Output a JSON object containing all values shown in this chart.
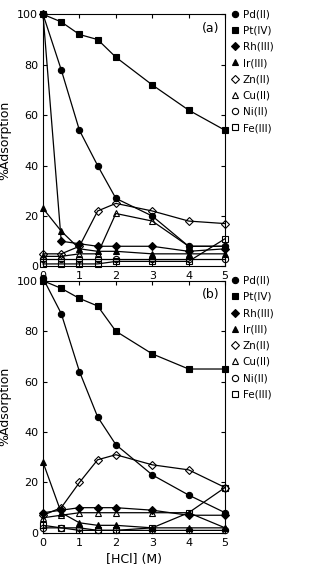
{
  "panel_a": {
    "label": "(a)",
    "series": {
      "Pd(II)": {
        "x": [
          0,
          0.5,
          1,
          1.5,
          2,
          3,
          4,
          5
        ],
        "y": [
          100,
          78,
          54,
          40,
          27,
          20,
          8,
          8
        ]
      },
      "Pt(IV)": {
        "x": [
          0,
          0.5,
          1,
          1.5,
          2,
          3,
          4,
          5
        ],
        "y": [
          100,
          97,
          92,
          90,
          83,
          72,
          62,
          54
        ]
      },
      "Rh(III)": {
        "x": [
          0,
          0.5,
          1,
          1.5,
          2,
          3,
          4,
          5
        ],
        "y": [
          100,
          10,
          9,
          8,
          8,
          8,
          6,
          7
        ]
      },
      "Ir(III)": {
        "x": [
          0,
          0.5,
          1,
          1.5,
          2,
          3,
          4,
          5
        ],
        "y": [
          23,
          14,
          7,
          6,
          6,
          5,
          5,
          5
        ]
      },
      "Zn(II)": {
        "x": [
          0,
          0.5,
          1,
          1.5,
          2,
          3,
          4,
          5
        ],
        "y": [
          5,
          5,
          8,
          22,
          25,
          22,
          18,
          17
        ]
      },
      "Cu(II)": {
        "x": [
          0,
          0.5,
          1,
          1.5,
          2,
          3,
          4,
          5
        ],
        "y": [
          4,
          4,
          5,
          5,
          21,
          18,
          8,
          8
        ]
      },
      "Ni(II)": {
        "x": [
          0,
          0.5,
          1,
          1.5,
          2,
          3,
          4,
          5
        ],
        "y": [
          3,
          3,
          3,
          3,
          3,
          3,
          3,
          3
        ]
      },
      "Fe(III)": {
        "x": [
          0,
          0.5,
          1,
          1.5,
          2,
          3,
          4,
          5
        ],
        "y": [
          1,
          1,
          1,
          1,
          2,
          2,
          2,
          11
        ]
      }
    }
  },
  "panel_b": {
    "label": "(b)",
    "series": {
      "Pd(II)": {
        "x": [
          0,
          0.5,
          1,
          1.5,
          2,
          3,
          4,
          5
        ],
        "y": [
          101,
          87,
          64,
          46,
          35,
          23,
          15,
          8
        ]
      },
      "Pt(IV)": {
        "x": [
          0,
          0.5,
          1,
          1.5,
          2,
          3,
          4,
          5
        ],
        "y": [
          100,
          97,
          93,
          90,
          80,
          71,
          65,
          65
        ]
      },
      "Rh(III)": {
        "x": [
          0,
          0.5,
          1,
          1.5,
          2,
          3,
          4,
          5
        ],
        "y": [
          8,
          9,
          10,
          10,
          10,
          9,
          7,
          7
        ]
      },
      "Ir(III)": {
        "x": [
          0,
          0.5,
          1,
          1.5,
          2,
          3,
          4,
          5
        ],
        "y": [
          28,
          8,
          4,
          3,
          3,
          2,
          2,
          2
        ]
      },
      "Zn(II)": {
        "x": [
          0,
          0.5,
          1,
          1.5,
          2,
          3,
          4,
          5
        ],
        "y": [
          7,
          10,
          20,
          29,
          31,
          27,
          25,
          18
        ]
      },
      "Cu(II)": {
        "x": [
          0,
          0.5,
          1,
          1.5,
          2,
          3,
          4,
          5
        ],
        "y": [
          6,
          7,
          8,
          8,
          8,
          8,
          8,
          2
        ]
      },
      "Ni(II)": {
        "x": [
          0,
          0.5,
          1,
          1.5,
          2,
          3,
          4,
          5
        ],
        "y": [
          2,
          2,
          2,
          1,
          1,
          1,
          1,
          1
        ]
      },
      "Fe(III)": {
        "x": [
          0,
          0.5,
          1,
          1.5,
          2,
          3,
          4,
          5
        ],
        "y": [
          3,
          2,
          1,
          1,
          1,
          2,
          8,
          18
        ]
      }
    }
  },
  "legend_order": [
    "Pd(II)",
    "Pt(IV)",
    "Rh(III)",
    "Ir(III)",
    "Zn(II)",
    "Cu(II)",
    "Ni(II)",
    "Fe(III)"
  ],
  "marker_props": {
    "Pd(II)": {
      "marker": "o",
      "fillstyle": "full"
    },
    "Pt(IV)": {
      "marker": "s",
      "fillstyle": "full"
    },
    "Rh(III)": {
      "marker": "D",
      "fillstyle": "full"
    },
    "Ir(III)": {
      "marker": "^",
      "fillstyle": "full"
    },
    "Zn(II)": {
      "marker": "D",
      "fillstyle": "none"
    },
    "Cu(II)": {
      "marker": "^",
      "fillstyle": "none"
    },
    "Ni(II)": {
      "marker": "o",
      "fillstyle": "none"
    },
    "Fe(III)": {
      "marker": "s",
      "fillstyle": "none"
    }
  },
  "ylabel": "%Adsorption",
  "xlabel": "[HCl] (M)",
  "xlim": [
    0,
    5
  ],
  "ylim": [
    0,
    100
  ],
  "yticks": [
    0,
    20,
    40,
    60,
    80,
    100
  ],
  "xticks": [
    0,
    1,
    2,
    3,
    4,
    5
  ],
  "figsize": [
    3.31,
    5.73
  ],
  "dpi": 100
}
